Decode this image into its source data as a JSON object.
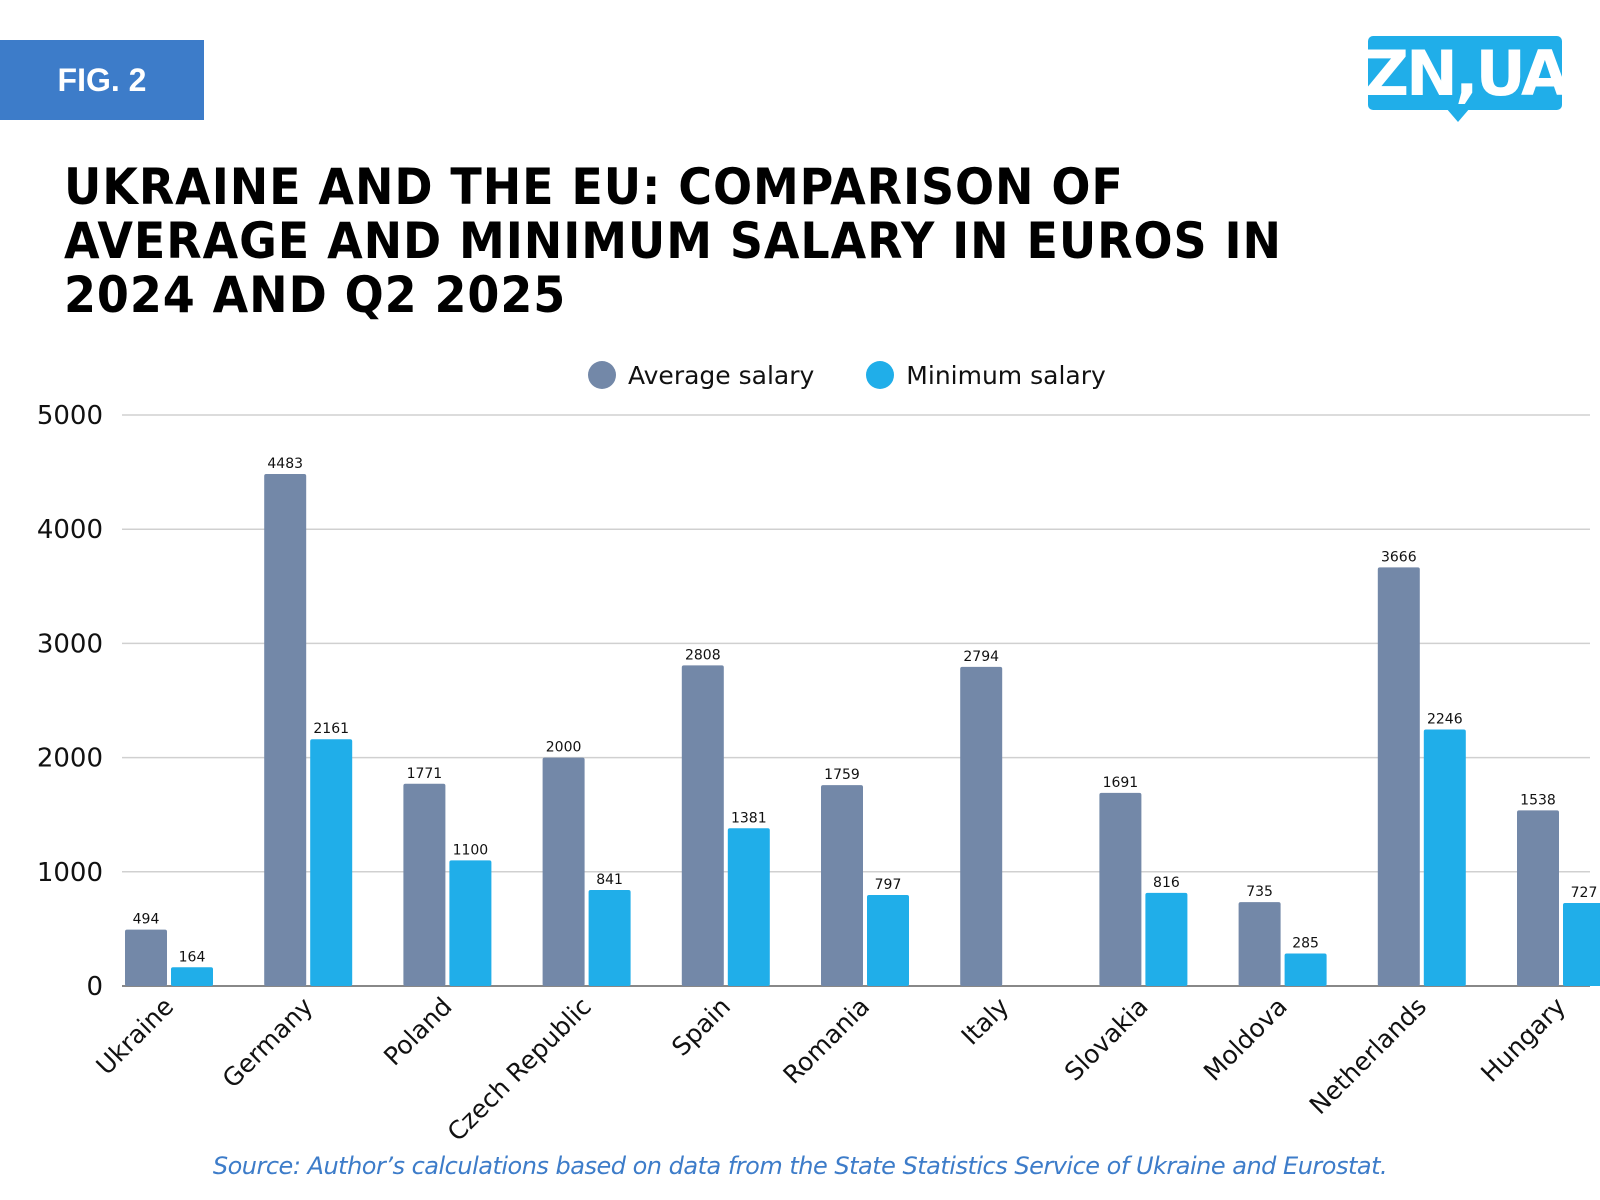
{
  "header": {
    "figure_label": "FIG. 2",
    "logo_text": "ZN,UA",
    "title": "UKRAINE AND THE EU: COMPARISON OF AVERAGE AND MINIMUM SALARY IN EUROS IN 2024 AND Q2 2025"
  },
  "colors": {
    "badge": "#3d7cc9",
    "logo": "#20aee9",
    "average": "#7388a8",
    "minimum": "#20aee9",
    "source": "#3d7cc9",
    "grid": "#d0d0d0"
  },
  "source_note": "Source: Author’s calculations based on data from the State Statistics Service of Ukraine and Eurostat.",
  "chart_data": {
    "type": "bar",
    "title": "UKRAINE AND THE EU: COMPARISON OF AVERAGE AND MINIMUM SALARY IN EUROS IN 2024 AND Q2 2025",
    "xlabel": "",
    "ylabel": "",
    "ylim": [
      0,
      5000
    ],
    "yticks": [
      0,
      1000,
      2000,
      3000,
      4000,
      5000
    ],
    "grid": true,
    "legend_position": "top-center",
    "categories": [
      "Ukraine",
      "Germany",
      "Poland",
      "Czech Republic",
      "Spain",
      "Romania",
      "Italy",
      "Slovakia",
      "Moldova",
      "Netherlands",
      "Hungary"
    ],
    "series": [
      {
        "name": "Average salary",
        "color": "#7388a8",
        "values": [
          494,
          4483,
          1771,
          2000,
          2808,
          1759,
          2794,
          1691,
          735,
          3666,
          1538
        ]
      },
      {
        "name": "Minimum salary",
        "color": "#20aee9",
        "values": [
          164,
          2161,
          1100,
          841,
          1381,
          797,
          null,
          816,
          285,
          2246,
          727
        ]
      }
    ]
  }
}
